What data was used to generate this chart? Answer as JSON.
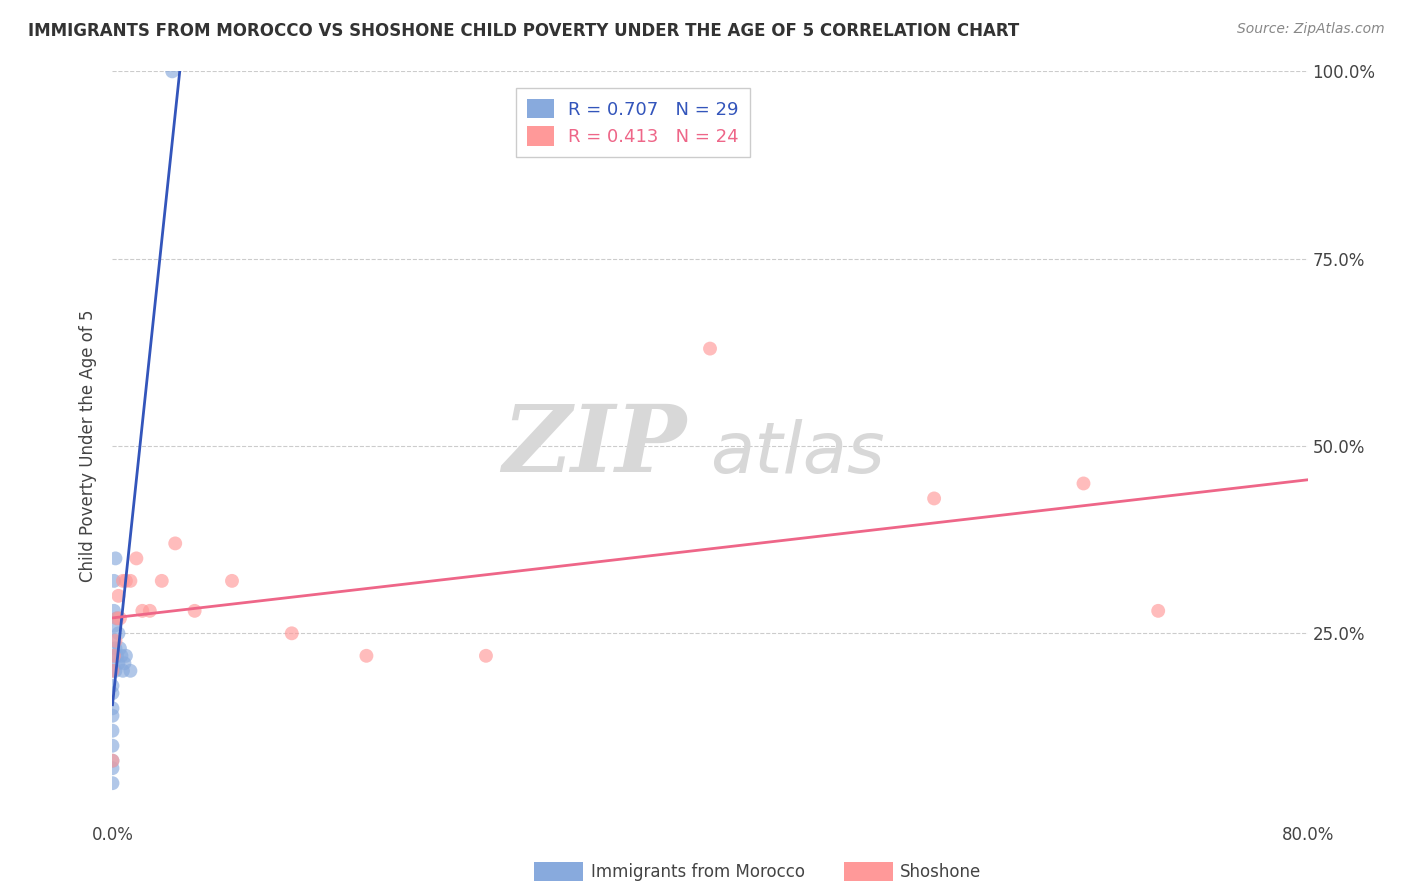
{
  "title": "IMMIGRANTS FROM MOROCCO VS SHOSHONE CHILD POVERTY UNDER THE AGE OF 5 CORRELATION CHART",
  "source": "Source: ZipAtlas.com",
  "ylabel": "Child Poverty Under the Age of 5",
  "xlim": [
    0.0,
    0.8
  ],
  "ylim": [
    0.0,
    1.0
  ],
  "morocco_R": 0.707,
  "morocco_N": 29,
  "shoshone_R": 0.413,
  "shoshone_N": 24,
  "morocco_color": "#88AADD",
  "shoshone_color": "#FF9999",
  "morocco_line_color": "#3355BB",
  "shoshone_line_color": "#EE6688",
  "watermark_zip": "ZIP",
  "watermark_atlas": "atlas",
  "background_color": "#ffffff",
  "grid_color": "#cccccc",
  "morocco_x": [
    0.0,
    0.0,
    0.0,
    0.0,
    0.0,
    0.0,
    0.0,
    0.0,
    0.0,
    0.0,
    0.001,
    0.001,
    0.001,
    0.001,
    0.001,
    0.002,
    0.002,
    0.002,
    0.003,
    0.003,
    0.004,
    0.004,
    0.005,
    0.006,
    0.007,
    0.008,
    0.009,
    0.012,
    0.04
  ],
  "morocco_y": [
    0.05,
    0.07,
    0.08,
    0.1,
    0.12,
    0.14,
    0.15,
    0.17,
    0.18,
    0.2,
    0.22,
    0.24,
    0.26,
    0.28,
    0.32,
    0.2,
    0.23,
    0.35,
    0.22,
    0.27,
    0.21,
    0.25,
    0.23,
    0.22,
    0.2,
    0.21,
    0.22,
    0.2,
    1.0
  ],
  "shoshone_x": [
    0.0,
    0.0,
    0.001,
    0.002,
    0.003,
    0.004,
    0.005,
    0.007,
    0.009,
    0.012,
    0.016,
    0.02,
    0.025,
    0.033,
    0.042,
    0.055,
    0.08,
    0.12,
    0.17,
    0.25,
    0.4,
    0.55,
    0.65,
    0.7
  ],
  "shoshone_y": [
    0.08,
    0.2,
    0.22,
    0.24,
    0.27,
    0.3,
    0.27,
    0.32,
    0.32,
    0.32,
    0.35,
    0.28,
    0.28,
    0.32,
    0.37,
    0.28,
    0.32,
    0.25,
    0.22,
    0.22,
    0.63,
    0.43,
    0.45,
    0.28
  ]
}
